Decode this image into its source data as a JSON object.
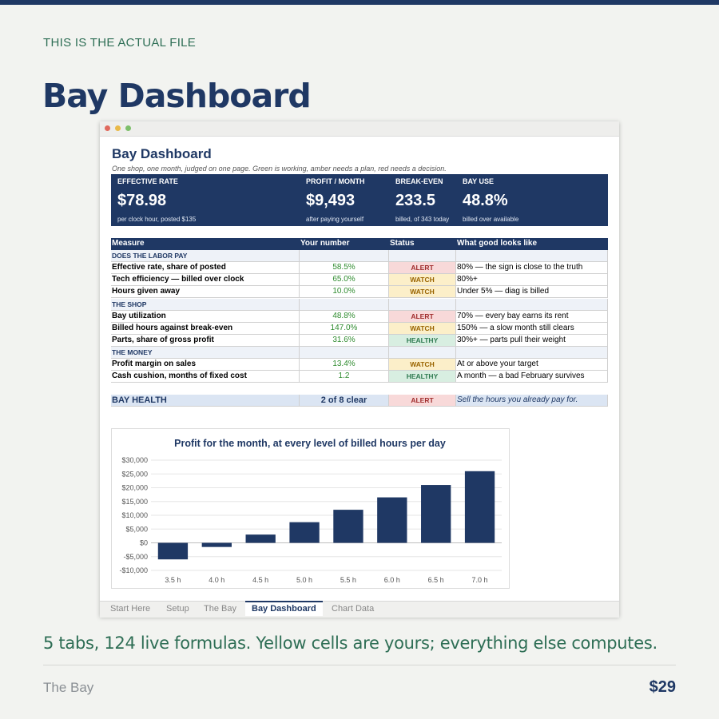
{
  "header": {
    "eyebrow": "THIS IS THE ACTUAL FILE",
    "title": "Bay Dashboard"
  },
  "sheet": {
    "title": "Bay Dashboard",
    "subtitle": "One shop, one month, judged on one page. Green is working, amber needs a plan, red needs a decision.",
    "kpis": [
      {
        "label": "EFFECTIVE RATE",
        "value": "$78.98",
        "note": "per clock hour, posted $135"
      },
      {
        "label": "PROFIT / MONTH",
        "value": "$9,493",
        "note": "after paying yourself"
      },
      {
        "label": "BREAK-EVEN",
        "value": "233.5",
        "note": "billed, of 343 today"
      },
      {
        "label": "BAY USE",
        "value": "48.8%",
        "note": "billed over available"
      }
    ],
    "table": {
      "columns": [
        "Measure",
        "Your number",
        "Status",
        "What good looks like"
      ],
      "sections": [
        {
          "name": "DOES THE LABOR PAY",
          "rows": [
            {
              "measure": "Effective rate, share of posted",
              "number": "58.5%",
              "status": "ALERT",
              "good": "80% — the sign is close to the truth",
              "fill": "#f8d9d9",
              "ink": "#a02c2c"
            },
            {
              "measure": "Tech efficiency — billed over clock",
              "number": "65.0%",
              "status": "WATCH",
              "good": "80%+",
              "fill": "#fcefc9",
              "ink": "#9a6400"
            },
            {
              "measure": "Hours given away",
              "number": "10.0%",
              "status": "WATCH",
              "good": "Under 5% — diag is billed",
              "fill": "#fcefc9",
              "ink": "#9a6400"
            }
          ]
        },
        {
          "name": "THE SHOP",
          "rows": [
            {
              "measure": "Bay utilization",
              "number": "48.8%",
              "status": "ALERT",
              "good": "70% — every bay earns its rent",
              "fill": "#f8d9d9",
              "ink": "#a02c2c"
            },
            {
              "measure": "Billed hours against break-even",
              "number": "147.0%",
              "status": "WATCH",
              "good": "150% — a slow month still clears",
              "fill": "#fcefc9",
              "ink": "#9a6400"
            },
            {
              "measure": "Parts, share of gross profit",
              "number": "31.6%",
              "status": "HEALTHY",
              "good": "30%+ — parts pull their weight",
              "fill": "#d8eee1",
              "ink": "#2e7a50"
            }
          ]
        },
        {
          "name": "THE MONEY",
          "rows": [
            {
              "measure": "Profit margin on sales",
              "number": "13.4%",
              "status": "WATCH",
              "good": "At or above your target",
              "fill": "#fcefc9",
              "ink": "#9a6400"
            },
            {
              "measure": "Cash cushion, months of fixed cost",
              "number": "1.2",
              "status": "HEALTHY",
              "good": "A month — a bad February survives",
              "fill": "#d8eee1",
              "ink": "#2e7a50"
            }
          ]
        }
      ],
      "summary": {
        "measure": "BAY HEALTH",
        "number": "2 of 8 clear",
        "status": "ALERT",
        "good": "Sell the hours you already pay for.",
        "fill": "#f8d9d9",
        "ink": "#a02c2c"
      }
    },
    "tabs": [
      "Start Here",
      "Setup",
      "The Bay",
      "Bay Dashboard",
      "Chart Data"
    ],
    "active_tab": 3
  },
  "chart_data": {
    "type": "bar",
    "title": "Profit for the month, at every level of billed hours per day",
    "categories": [
      "3.5 h",
      "4.0 h",
      "4.5 h",
      "5.0 h",
      "5.5 h",
      "6.0 h",
      "6.5 h",
      "7.0 h"
    ],
    "values": [
      -6000,
      -1500,
      3000,
      7500,
      12000,
      16500,
      21000,
      26000
    ],
    "color": "#1f3864",
    "ylim": [
      -10000,
      30000
    ],
    "yticks": [
      {
        "value": -10000,
        "label": "-$10,000"
      },
      {
        "value": -5000,
        "label": "-$5,000"
      },
      {
        "value": 0,
        "label": "$0"
      },
      {
        "value": 5000,
        "label": "$5,000"
      },
      {
        "value": 10000,
        "label": "$10,000"
      },
      {
        "value": 15000,
        "label": "$15,000"
      },
      {
        "value": 20000,
        "label": "$20,000"
      },
      {
        "value": 25000,
        "label": "$25,000"
      },
      {
        "value": 30000,
        "label": "$30,000"
      }
    ],
    "grid": true
  },
  "footer": {
    "caption": "5 tabs, 124 live formulas. Yellow cells are yours; everything else computes.",
    "brand": "The Bay",
    "price": "$29"
  }
}
